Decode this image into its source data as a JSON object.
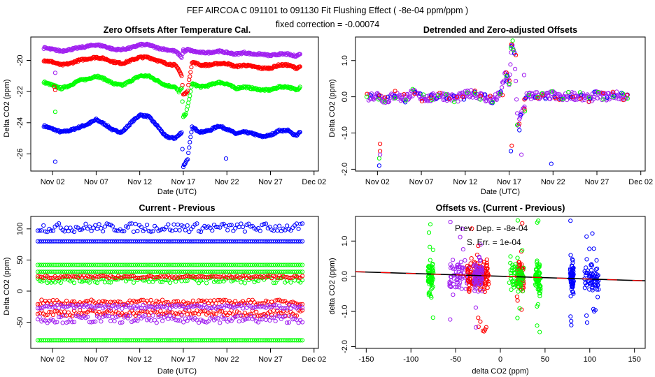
{
  "figure": {
    "title": "FEF   AIRCOA C   091101 to 091130   Fit Flushing Effect ( -8e-04 ppm/ppm )",
    "subtitle": "fixed correction = -0.00074"
  },
  "colors": {
    "blue": "#0000ff",
    "red": "#ff0000",
    "green": "#00ff00",
    "purple": "#a020f0",
    "fit": "#000000",
    "fit_dash": "#ff0000"
  },
  "chart_data": [
    {
      "id": "p1",
      "type": "scatter",
      "title": "Zero Offsets After Temperature Cal.",
      "xlabel": "Date (UTC)",
      "ylabel": "Delta CO2 (ppm)",
      "xlim": [
        -1.5,
        31.5
      ],
      "ylim": [
        -27.1,
        -18.5
      ],
      "xticks": [
        1,
        6,
        11,
        16,
        21,
        26,
        31
      ],
      "xtick_labels": [
        "Nov 02",
        "Nov 07",
        "Nov 12",
        "Nov 17",
        "Nov 22",
        "Nov 27",
        "Dec 02"
      ],
      "yticks": [
        -26,
        -24,
        -22,
        -20
      ],
      "ytick_labels": [
        "-26",
        "-24",
        "-22",
        "-20"
      ],
      "series": [
        {
          "name": "blue",
          "color": "#0000ff",
          "x": [
            0,
            1,
            2,
            3,
            4,
            5,
            6,
            7,
            8,
            9,
            10,
            11,
            12,
            13,
            14,
            15,
            15.5,
            15.8,
            16,
            16.3,
            16.5,
            17,
            18,
            19,
            20,
            21,
            22,
            23,
            24,
            25,
            26,
            27,
            28,
            28.5,
            29,
            29.4
          ],
          "y": [
            -24.2,
            -24.4,
            -24.6,
            -24.5,
            -24.3,
            -24.1,
            -23.8,
            -24.1,
            -24.5,
            -24.6,
            -24.0,
            -23.5,
            -23.6,
            -24.2,
            -24.9,
            -25.0,
            -24.8,
            -24.6,
            -26.8,
            -26.5,
            -26.3,
            -24.3,
            -24.6,
            -24.5,
            -24.2,
            -24.4,
            -24.7,
            -24.6,
            -24.7,
            -24.9,
            -24.8,
            -24.5,
            -24.5,
            -24.7,
            -24.8,
            -24.6
          ]
        },
        {
          "name": "green",
          "color": "#00ff00",
          "x": [
            0,
            1,
            2,
            3,
            4,
            5,
            6,
            7,
            8,
            9,
            10,
            11,
            12,
            13,
            14,
            15,
            15.5,
            15.8,
            16,
            16.3,
            16.5,
            17,
            18,
            19,
            20,
            21,
            22,
            23,
            24,
            25,
            26,
            27,
            28,
            28.5,
            29,
            29.4
          ],
          "y": [
            -21.4,
            -21.6,
            -21.8,
            -21.6,
            -21.3,
            -21.2,
            -21.0,
            -21.2,
            -21.5,
            -21.6,
            -21.3,
            -21.0,
            -21.0,
            -21.3,
            -21.6,
            -21.7,
            -22.0,
            -21.8,
            -23.6,
            -23.4,
            -23.0,
            -21.5,
            -21.7,
            -21.6,
            -21.4,
            -21.5,
            -21.8,
            -21.7,
            -21.8,
            -21.9,
            -21.9,
            -21.7,
            -21.7,
            -21.8,
            -21.9,
            -21.7
          ]
        },
        {
          "name": "red",
          "color": "#ff0000",
          "x": [
            0,
            1,
            2,
            3,
            4,
            5,
            6,
            7,
            8,
            9,
            10,
            11,
            12,
            13,
            14,
            15,
            15.5,
            15.8,
            16,
            16.3,
            16.5,
            17,
            18,
            19,
            20,
            21,
            22,
            23,
            24,
            25,
            26,
            27,
            28,
            28.5,
            29,
            29.4
          ],
          "y": [
            -20.0,
            -20.1,
            -20.3,
            -20.2,
            -20.0,
            -19.9,
            -19.8,
            -19.9,
            -20.1,
            -20.2,
            -20.0,
            -19.8,
            -19.8,
            -20.0,
            -20.2,
            -20.3,
            -20.6,
            -21.0,
            -22.2,
            -22.1,
            -21.9,
            -20.1,
            -20.3,
            -20.3,
            -20.2,
            -20.2,
            -20.4,
            -20.3,
            -20.4,
            -20.5,
            -20.5,
            -20.3,
            -20.3,
            -20.4,
            -20.5,
            -20.4
          ]
        },
        {
          "name": "purple",
          "color": "#a020f0",
          "x": [
            0,
            1,
            2,
            3,
            4,
            5,
            6,
            7,
            8,
            9,
            10,
            11,
            12,
            13,
            14,
            15,
            15.5,
            15.8,
            16,
            16.3,
            16.5,
            17,
            18,
            19,
            20,
            21,
            22,
            23,
            24,
            25,
            26,
            27,
            28,
            28.5,
            29,
            29.4
          ],
          "y": [
            -19.2,
            -19.3,
            -19.4,
            -19.3,
            -19.2,
            -19.1,
            -19.0,
            -19.1,
            -19.3,
            -19.3,
            -19.2,
            -19.0,
            -19.0,
            -19.2,
            -19.3,
            -19.4,
            -19.6,
            -19.8,
            -19.4,
            -19.4,
            -19.3,
            -19.4,
            -19.5,
            -19.5,
            -19.4,
            -19.5,
            -19.6,
            -19.5,
            -19.6,
            -19.6,
            -19.7,
            -19.6,
            -19.6,
            -19.7,
            -19.7,
            -19.6
          ]
        }
      ],
      "outliers": [
        {
          "color": "#0000ff",
          "x": 1.3,
          "y": -26.5
        },
        {
          "color": "#0000ff",
          "x": 20.9,
          "y": -26.3
        },
        {
          "color": "#00ff00",
          "x": 1.3,
          "y": -23.3
        },
        {
          "color": "#ff0000",
          "x": 1.2,
          "y": -21.7
        },
        {
          "color": "#ff0000",
          "x": 1.3,
          "y": -21.9
        },
        {
          "color": "#a020f0",
          "x": 1.3,
          "y": -20.8
        },
        {
          "color": "#a020f0",
          "x": 16.0,
          "y": -19.3
        }
      ]
    },
    {
      "id": "p2",
      "type": "scatter",
      "title": "Detrended and Zero-adjusted Offsets",
      "xlabel": "Date (UTC)",
      "ylabel": "Delta CO2 (ppm)",
      "xlim": [
        -1.5,
        31.5
      ],
      "ylim": [
        -2.05,
        1.65
      ],
      "xticks": [
        1,
        6,
        11,
        16,
        21,
        26,
        31
      ],
      "xtick_labels": [
        "Nov 02",
        "Nov 07",
        "Nov 12",
        "Nov 17",
        "Nov 22",
        "Nov 27",
        "Dec 02"
      ],
      "yticks": [
        -2,
        -1,
        0,
        1
      ],
      "ytick_labels": [
        "-2.0",
        "-1.0",
        "0.0",
        "1.0"
      ],
      "series": [
        {
          "name": "all",
          "color": "#a020f0",
          "x": [
            0,
            1,
            2,
            3,
            4,
            5,
            6,
            7,
            8,
            9,
            10,
            11,
            12,
            13,
            14,
            15,
            15.5,
            16,
            16.3,
            16.6,
            17,
            17.5,
            18,
            19,
            20,
            21,
            22,
            23,
            24,
            25,
            26,
            27,
            28,
            29,
            29.5
          ],
          "y": [
            0.0,
            0.05,
            -0.1,
            0.05,
            -0.05,
            0.1,
            0.0,
            -0.05,
            0.05,
            0.0,
            -0.05,
            0.05,
            0.1,
            0.0,
            -0.1,
            0.05,
            0.6,
            0.4,
            1.4,
            1.2,
            -0.8,
            -0.4,
            0.0,
            0.05,
            0.0,
            0.05,
            -0.05,
            0.05,
            0.0,
            -0.05,
            0.05,
            0.0,
            0.05,
            0.0,
            0.05
          ]
        }
      ],
      "outliers": [
        {
          "color": "#0000ff",
          "x": 1.2,
          "y": -1.9
        },
        {
          "color": "#ff0000",
          "x": 1.3,
          "y": -1.3
        },
        {
          "color": "#ff0000",
          "x": 1.3,
          "y": -1.5
        },
        {
          "color": "#00ff00",
          "x": 1.2,
          "y": -1.7
        },
        {
          "color": "#a020f0",
          "x": 1.3,
          "y": -1.6
        },
        {
          "color": "#0000ff",
          "x": 16.2,
          "y": -1.5
        },
        {
          "color": "#ff0000",
          "x": 16.3,
          "y": -1.35
        },
        {
          "color": "#00ff00",
          "x": 16.4,
          "y": 1.55
        },
        {
          "color": "#a020f0",
          "x": 17.4,
          "y": -1.6
        },
        {
          "color": "#0000ff",
          "x": 20.8,
          "y": -1.85
        },
        {
          "color": "#a020f0",
          "x": 17.7,
          "y": 0.6
        }
      ]
    },
    {
      "id": "p3",
      "type": "scatter",
      "title": "Current - Previous",
      "xlabel": "Date (UTC)",
      "ylabel": "Delta CO2 (ppm)",
      "xlim": [
        -1.5,
        31.5
      ],
      "ylim": [
        -92,
        120
      ],
      "xticks": [
        1,
        6,
        11,
        16,
        21,
        26,
        31
      ],
      "xtick_labels": [
        "Nov 02",
        "Nov 07",
        "Nov 12",
        "Nov 17",
        "Nov 22",
        "Nov 27",
        "Dec 02"
      ],
      "yticks": [
        -50,
        0,
        50,
        100
      ],
      "ytick_labels": [
        "-50",
        "0",
        "50",
        "100"
      ],
      "bands": [
        {
          "color": "#0000ff",
          "y": 102,
          "spread": 7
        },
        {
          "color": "#0000ff",
          "y": 80,
          "spread": 0
        },
        {
          "color": "#00ff00",
          "y": 42,
          "spread": 0
        },
        {
          "color": "#00ff00",
          "y": 31,
          "spread": 0
        },
        {
          "color": "#00ff00",
          "y": 18,
          "spread": 5
        },
        {
          "color": "#ff0000",
          "y": 23,
          "spread": 2
        },
        {
          "color": "#ff0000",
          "y": -18,
          "spread": 4
        },
        {
          "color": "#ff0000",
          "y": -35,
          "spread": 5
        },
        {
          "color": "#a020f0",
          "y": -25,
          "spread": 3
        },
        {
          "color": "#a020f0",
          "y": -45,
          "spread": 6
        },
        {
          "color": "#00ff00",
          "y": -79,
          "spread": 0
        }
      ]
    },
    {
      "id": "p4",
      "type": "scatter",
      "title": "Offsets vs. (Current - Previous)",
      "xlabel": "delta CO2 (ppm)",
      "ylabel": "delta CO2 (ppm)",
      "xlim": [
        -162,
        162
      ],
      "ylim": [
        -2.05,
        1.7
      ],
      "xticks": [
        -150,
        -100,
        -50,
        0,
        50,
        100,
        150
      ],
      "xtick_labels": [
        "-150",
        "-100",
        "-50",
        "0",
        "50",
        "100",
        "150"
      ],
      "yticks": [
        -2,
        -1,
        0,
        1
      ],
      "ytick_labels": [
        "-2.0",
        "-1.0",
        "0.0",
        "1.0"
      ],
      "annotations": [
        "Prev. Dep. =   -8e-04",
        "S. Err. =  1e-04"
      ],
      "fit": {
        "slope": -0.0008,
        "intercept": 0.0
      },
      "clusters": [
        {
          "color": "#00ff00",
          "x": -78,
          "spread": 3
        },
        {
          "color": "#a020f0",
          "x": -45,
          "spread": 12
        },
        {
          "color": "#ff0000",
          "x": -30,
          "spread": 7
        },
        {
          "color": "#ff0000",
          "x": -18,
          "spread": 5
        },
        {
          "color": "#a020f0",
          "x": -25,
          "spread": 5
        },
        {
          "color": "#ff0000",
          "x": 22,
          "spread": 4
        },
        {
          "color": "#00ff00",
          "x": 18,
          "spread": 8
        },
        {
          "color": "#00ff00",
          "x": 42,
          "spread": 3
        },
        {
          "color": "#0000ff",
          "x": 80,
          "spread": 2
        },
        {
          "color": "#0000ff",
          "x": 102,
          "spread": 8
        }
      ]
    }
  ]
}
